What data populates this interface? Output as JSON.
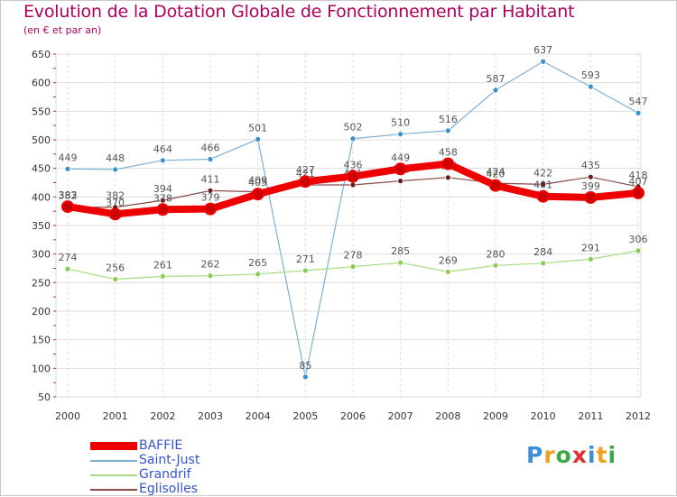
{
  "title": "Evolution de la Dotation Globale de Fonctionnement par Habitant",
  "subtitle": "(en € et par an)",
  "logo": {
    "text": "Proxiti",
    "letters": [
      {
        "ch": "P",
        "color": "#3a8fd8"
      },
      {
        "ch": "r",
        "color": "#f0a020"
      },
      {
        "ch": "o",
        "color": "#3aa848"
      },
      {
        "ch": "x",
        "color": "#e03030"
      },
      {
        "ch": "i",
        "color": "#3a8fd8"
      },
      {
        "ch": "t",
        "color": "#f0a020"
      },
      {
        "ch": "i",
        "color": "#3aa848"
      }
    ]
  },
  "chart_data": {
    "type": "line",
    "title": "Evolution de la Dotation Globale de Fonctionnement par Habitant",
    "subtitle": "(en € et par an)",
    "xlabel": "",
    "ylabel": "",
    "categories": [
      "2000",
      "2001",
      "2002",
      "2003",
      "2004",
      "2005",
      "2006",
      "2007",
      "2008",
      "2009",
      "2010",
      "2011",
      "2012"
    ],
    "ylim": [
      50,
      650
    ],
    "yticks": [
      50,
      100,
      150,
      200,
      250,
      300,
      350,
      400,
      450,
      500,
      550,
      600,
      650
    ],
    "grid": true,
    "legend_position": "bottom-left",
    "series": [
      {
        "name": "Saint-Just",
        "color": "#7ab0d8",
        "marker_color": "#3d8ec9",
        "width": 1.2,
        "values": [
          449,
          448,
          464,
          466,
          501,
          85,
          502,
          510,
          516,
          587,
          637,
          593,
          547
        ]
      },
      {
        "name": "Grandrif",
        "color": "#a8dc80",
        "marker_color": "#88cc55",
        "width": 1.2,
        "values": [
          274,
          256,
          261,
          262,
          265,
          271,
          278,
          285,
          269,
          280,
          284,
          291,
          306
        ]
      },
      {
        "name": "Eglisolles",
        "color": "#8a4a4a",
        "marker_color": "#6a1a1a",
        "width": 1.2,
        "values": [
          382,
          382,
          394,
          411,
          409,
          421,
          421,
          428,
          434,
          424,
          422,
          435,
          418
        ]
      },
      {
        "name": "BAFFIE",
        "color": "#ee0000",
        "marker_color": "#cc0000",
        "width": 8,
        "values": [
          383,
          370,
          378,
          379,
          405,
          427,
          436,
          449,
          458,
          420,
          401,
          399,
          407
        ]
      }
    ],
    "legend_order": [
      "BAFFIE",
      "Saint-Just",
      "Grandrif",
      "Eglisolles"
    ]
  }
}
